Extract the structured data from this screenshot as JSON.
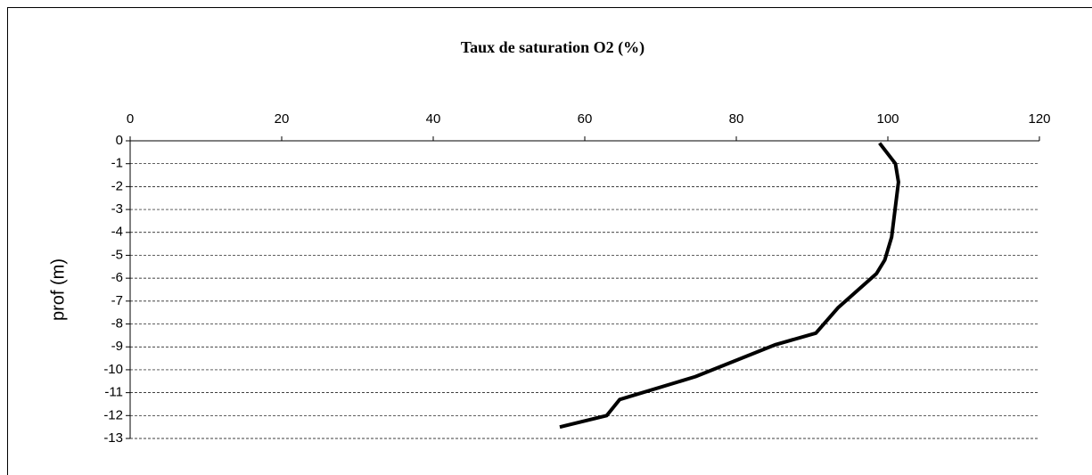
{
  "chart_data": {
    "type": "line",
    "title": "Taux de saturation O2 (%)",
    "y_label": "prof (m)",
    "x": [
      98.9,
      101.0,
      101.4,
      100.5,
      99.6,
      98.5,
      93.4,
      90.5,
      85.2,
      74.6,
      64.6,
      62.9,
      56.7
    ],
    "values": [
      -0.1,
      -1.0,
      -1.8,
      -4.2,
      -5.2,
      -5.8,
      -7.3,
      -8.4,
      -8.9,
      -10.3,
      -11.3,
      -12.0,
      -12.5
    ],
    "color": "#000000",
    "xlim": [
      0,
      120
    ],
    "xticks": [
      0,
      20,
      40,
      60,
      80,
      100,
      120
    ],
    "ylim": [
      -13,
      0
    ],
    "yticks": [
      0,
      -1,
      -2,
      -3,
      -4,
      -5,
      -6,
      -7,
      -8,
      -9,
      -10,
      -11,
      -12,
      -13
    ],
    "grid": true
  }
}
